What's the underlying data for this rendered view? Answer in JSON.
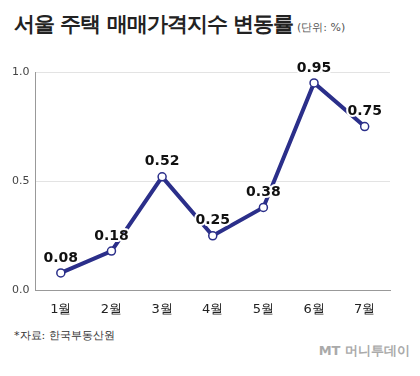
{
  "chart_data": {
    "type": "line",
    "title": "서울 주택 매매가격지수 변동률",
    "subtitle": "(단위: %)",
    "categories": [
      "1월",
      "2월",
      "3월",
      "4월",
      "5월",
      "6월",
      "7월"
    ],
    "values": [
      0.08,
      0.18,
      0.52,
      0.25,
      0.38,
      0.95,
      0.75
    ],
    "color": "#2b2f8a",
    "marker": "circle",
    "ylim": [
      0,
      1.0
    ],
    "yticks": [
      {
        "value": 0,
        "label": "0.0"
      },
      {
        "value": 0.5,
        "label": "0.5"
      },
      {
        "value": 1.0,
        "label": "1.0"
      }
    ],
    "grid": true,
    "data_labels": true,
    "annotations": [
      "*자료: 한국부동산원",
      "MT 머니투데이"
    ]
  }
}
